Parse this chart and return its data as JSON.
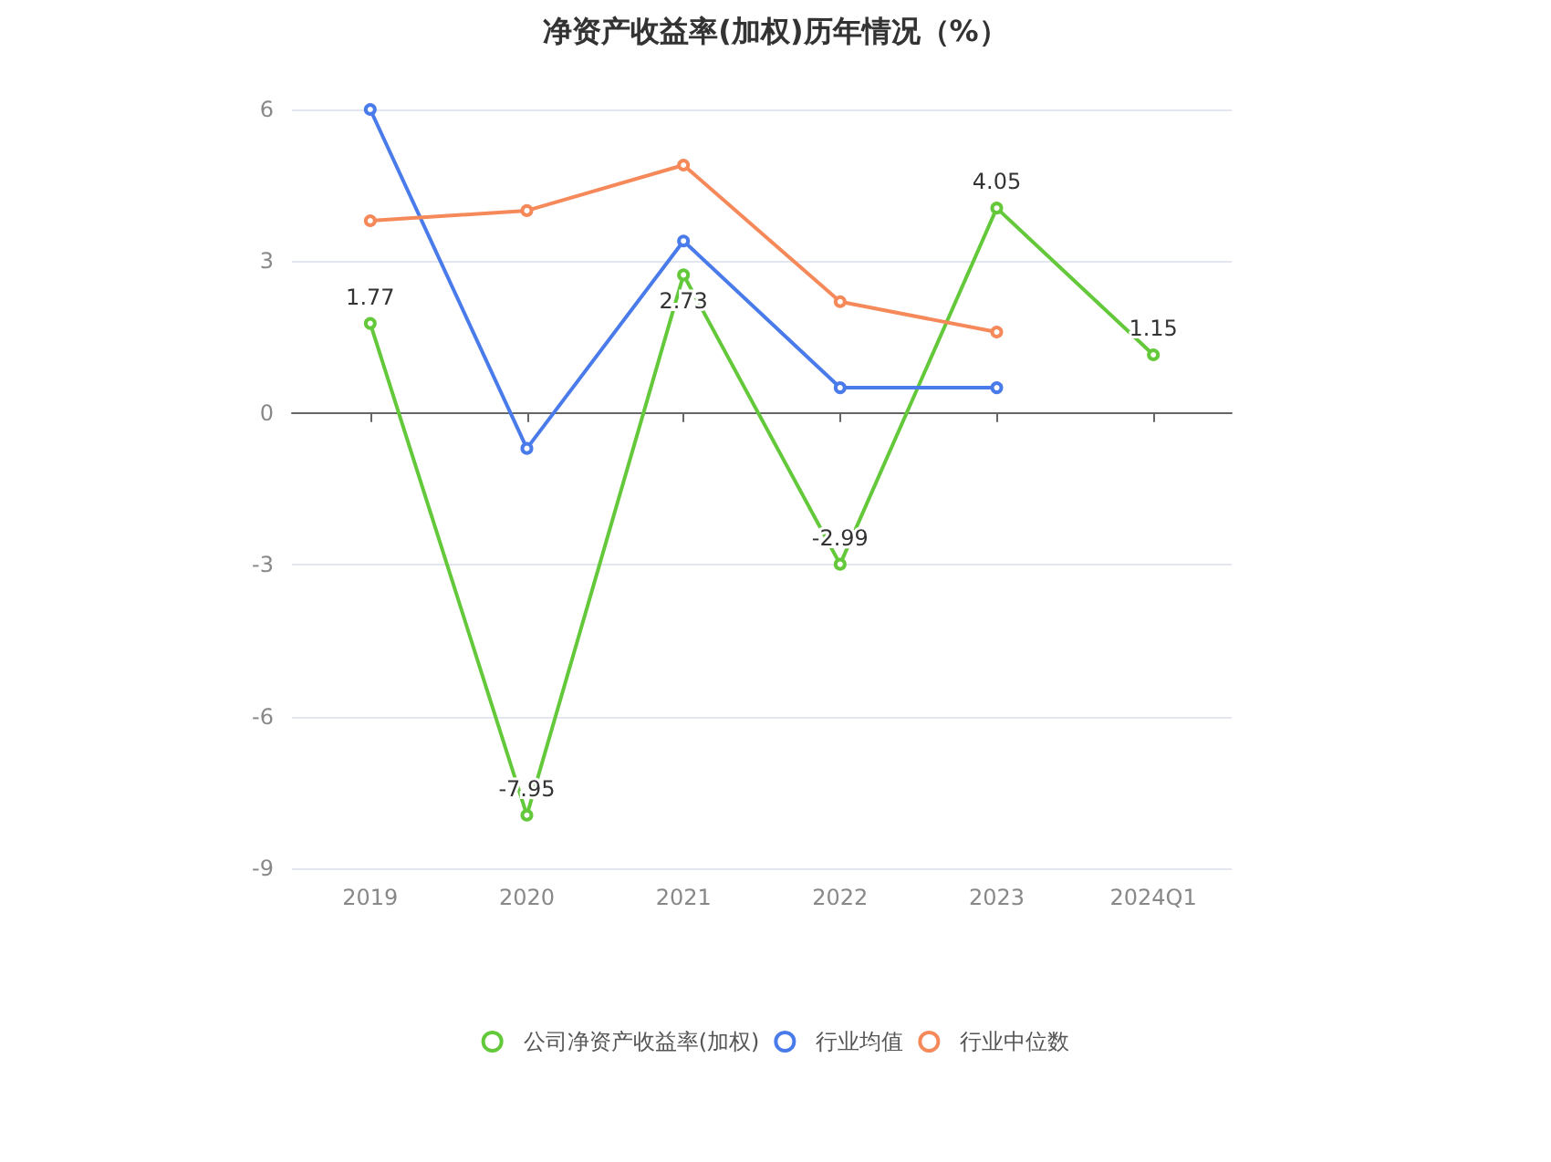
{
  "chart_data": {
    "type": "line",
    "title": "净资产收益率(加权)历年情况（%）",
    "categories": [
      "2019",
      "2020",
      "2021",
      "2022",
      "2023",
      "2024Q1"
    ],
    "series": [
      {
        "name": "公司净资产收益率(加权)",
        "color": "#63c93a",
        "values": [
          1.77,
          -7.95,
          2.73,
          -2.99,
          4.05,
          1.15
        ],
        "value_labels": [
          "1.77",
          "-7.95",
          "2.73",
          "-2.99",
          "4.05",
          "1.15"
        ]
      },
      {
        "name": "行业均值",
        "color": "#4a7bea",
        "values": [
          6.0,
          -0.7,
          3.4,
          0.5,
          0.5,
          null
        ]
      },
      {
        "name": "行业中位数",
        "color": "#f5895a",
        "values": [
          3.8,
          4.0,
          4.9,
          2.2,
          1.6,
          null
        ]
      }
    ],
    "ylim": [
      -9,
      6
    ],
    "yticks": [
      -9,
      -6,
      -3,
      0,
      3,
      6
    ],
    "grid": "y",
    "legend": "bottom",
    "marker": "circle",
    "line_style": "solid"
  }
}
